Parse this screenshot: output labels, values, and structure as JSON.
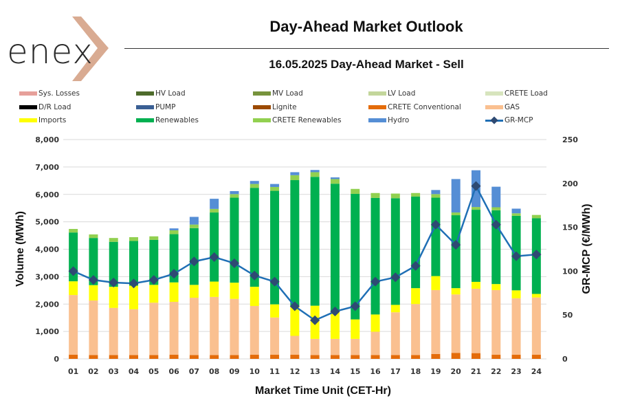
{
  "header": {
    "logo_text": "enex",
    "title": "Day-Ahead Market Outlook",
    "subtitle": "16.05.2025  Day-Ahead Market - Sell"
  },
  "chart_data": {
    "type": "bar",
    "stacked": true,
    "title": "16.05.2025  Day-Ahead Market - Sell",
    "xlabel": "Market Time Unit (CET-Hr)",
    "ylabel": "Volume (MWh)",
    "y2label": "GR-MCP (€/MWh)",
    "ylim": [
      0,
      8000
    ],
    "y2lim": [
      0,
      250
    ],
    "yticks": [
      "0",
      "1,000",
      "2,000",
      "3,000",
      "4,000",
      "5,000",
      "6,000",
      "7,000",
      "8,000"
    ],
    "y2ticks": [
      "0",
      "50",
      "100",
      "150",
      "200",
      "250"
    ],
    "grid": true,
    "legend_position": "top",
    "categories": [
      "01",
      "02",
      "03",
      "04",
      "05",
      "06",
      "07",
      "08",
      "09",
      "10",
      "11",
      "12",
      "13",
      "14",
      "15",
      "16",
      "17",
      "18",
      "19",
      "20",
      "21",
      "22",
      "23",
      "24"
    ],
    "legend": [
      {
        "name": "Sys. Losses",
        "color": "#e6a09a",
        "kind": "bar"
      },
      {
        "name": "HV Load",
        "color": "#4e6b2b",
        "kind": "bar"
      },
      {
        "name": "MV Load",
        "color": "#77933c",
        "kind": "bar"
      },
      {
        "name": "LV Load",
        "color": "#c3d69b",
        "kind": "bar"
      },
      {
        "name": "CRETE Load",
        "color": "#d7e4bd",
        "kind": "bar"
      },
      {
        "name": "D/R Load",
        "color": "#000000",
        "kind": "bar"
      },
      {
        "name": "PUMP",
        "color": "#3a5f94",
        "kind": "bar"
      },
      {
        "name": "Lignite",
        "color": "#9c4a00",
        "kind": "bar"
      },
      {
        "name": "CRETE Conventional",
        "color": "#e46c0a",
        "kind": "bar"
      },
      {
        "name": "GAS",
        "color": "#fac090",
        "kind": "bar"
      },
      {
        "name": "Imports",
        "color": "#ffff00",
        "kind": "bar"
      },
      {
        "name": "Renewables",
        "color": "#00b050",
        "kind": "bar"
      },
      {
        "name": "CRETE Renewables",
        "color": "#92d050",
        "kind": "bar"
      },
      {
        "name": "Hydro",
        "color": "#558ed5",
        "kind": "bar"
      },
      {
        "name": "GR-MCP",
        "color": "#1f6fb5",
        "kind": "line"
      }
    ],
    "series": [
      {
        "name": "CRETE Conventional",
        "values": [
          150,
          140,
          140,
          140,
          140,
          150,
          140,
          140,
          140,
          150,
          150,
          150,
          140,
          140,
          140,
          140,
          140,
          140,
          180,
          220,
          210,
          150,
          150,
          150
        ]
      },
      {
        "name": "GAS",
        "values": [
          2180,
          1990,
          1720,
          1670,
          1910,
          1930,
          2090,
          2120,
          2050,
          1780,
          1360,
          690,
          590,
          590,
          590,
          850,
          1560,
          1860,
          2330,
          2130,
          2350,
          2360,
          2060,
          2090
        ]
      },
      {
        "name": "Imports",
        "values": [
          500,
          560,
          770,
          860,
          650,
          710,
          470,
          560,
          590,
          700,
          480,
          1080,
          1210,
          980,
          710,
          630,
          270,
          580,
          510,
          230,
          250,
          220,
          290,
          130
        ]
      },
      {
        "name": "Renewables",
        "values": [
          1780,
          1720,
          1640,
          1630,
          1640,
          1760,
          2070,
          2520,
          3100,
          3610,
          4140,
          4600,
          4700,
          4680,
          4580,
          4250,
          3890,
          3340,
          2860,
          2660,
          2630,
          2690,
          2720,
          2760
        ]
      },
      {
        "name": "CRETE Renewables",
        "values": [
          130,
          130,
          140,
          140,
          130,
          140,
          130,
          130,
          130,
          140,
          140,
          180,
          170,
          170,
          180,
          180,
          170,
          130,
          130,
          100,
          100,
          110,
          90,
          120
        ]
      },
      {
        "name": "Hydro",
        "values": [
          0,
          0,
          0,
          0,
          0,
          70,
          280,
          370,
          110,
          110,
          110,
          110,
          80,
          60,
          0,
          0,
          0,
          0,
          150,
          1220,
          1340,
          750,
          170,
          0
        ]
      },
      {
        "name": "GR-MCP",
        "axis": "right",
        "values": [
          100,
          90,
          87,
          86,
          90,
          97,
          111,
          116,
          109,
          95,
          88,
          60,
          44,
          54,
          60,
          88,
          93,
          106,
          153,
          130,
          197,
          153,
          117,
          119
        ]
      }
    ]
  }
}
